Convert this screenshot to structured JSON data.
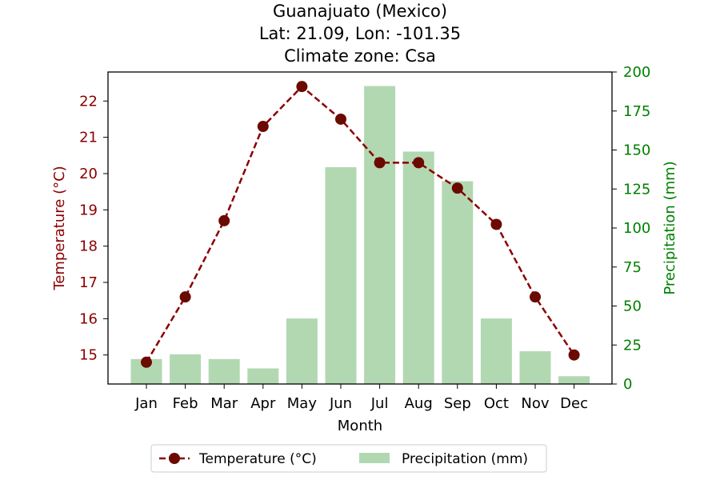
{
  "chart_data": {
    "type": "bar+line",
    "title_lines": [
      "Guanajuato (Mexico)",
      "Lat: 21.09, Lon: -101.35",
      "Climate zone: Csa"
    ],
    "xlabel": "Month",
    "categories": [
      "Jan",
      "Feb",
      "Mar",
      "Apr",
      "May",
      "Jun",
      "Jul",
      "Aug",
      "Sep",
      "Oct",
      "Nov",
      "Dec"
    ],
    "left_axis": {
      "label": "Temperature (°C)",
      "ylim": [
        14.2,
        22.8
      ],
      "ticks": [
        15,
        16,
        17,
        18,
        19,
        20,
        21,
        22
      ],
      "color": "#8b0000"
    },
    "right_axis": {
      "label": "Precipitation (mm)",
      "ylim": [
        0,
        200
      ],
      "ticks": [
        0,
        25,
        50,
        75,
        100,
        125,
        150,
        175,
        200
      ],
      "color": "#008000"
    },
    "series": [
      {
        "name": "Temperature (°C)",
        "type": "line",
        "axis": "left",
        "values": [
          14.8,
          16.6,
          18.7,
          21.3,
          22.4,
          21.5,
          20.3,
          20.3,
          19.6,
          18.6,
          16.6,
          15.0
        ],
        "line_color": "#8b0000",
        "marker_color": "#6b0a00",
        "line_style": "dashed"
      },
      {
        "name": "Precipitation (mm)",
        "type": "bar",
        "axis": "right",
        "values": [
          16,
          19,
          16,
          10,
          42,
          139,
          191,
          149,
          130,
          42,
          21,
          5
        ],
        "color": "#b2d8b2"
      }
    ],
    "legend_position": "bottom-center",
    "grid": false
  }
}
